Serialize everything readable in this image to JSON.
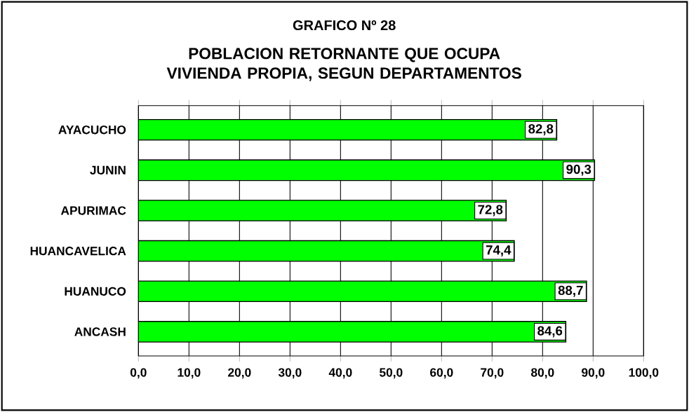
{
  "chart_data": {
    "type": "bar",
    "orientation": "horizontal",
    "title": "GRAFICO Nº 28",
    "subtitle": "POBLACION RETORNANTE QUE OCUPA VIVIENDA PROPIA, SEGUN DEPARTAMENTOS",
    "categories": [
      "AYACUCHO",
      "JUNIN",
      "APURIMAC",
      "HUANCAVELICA",
      "HUANUCO",
      "ANCASH"
    ],
    "values": [
      82.8,
      90.3,
      72.8,
      74.4,
      88.7,
      84.6
    ],
    "value_labels": [
      "82,8",
      "90,3",
      "72,8",
      "74,4",
      "88,7",
      "84,6"
    ],
    "color": "#00ff00",
    "xlim": [
      0,
      100
    ],
    "xticks": [
      {
        "value": 0,
        "label": "0,0"
      },
      {
        "value": 10,
        "label": "10,0"
      },
      {
        "value": 20,
        "label": "20,0"
      },
      {
        "value": 30,
        "label": "30,0"
      },
      {
        "value": 40,
        "label": "40,0"
      },
      {
        "value": 50,
        "label": "50,0"
      },
      {
        "value": 60,
        "label": "60,0"
      },
      {
        "value": 70,
        "label": "70,0"
      },
      {
        "value": 80,
        "label": "80,0"
      },
      {
        "value": 90,
        "label": "90,0"
      },
      {
        "value": 100,
        "label": "100,0"
      }
    ],
    "grid": "x"
  }
}
